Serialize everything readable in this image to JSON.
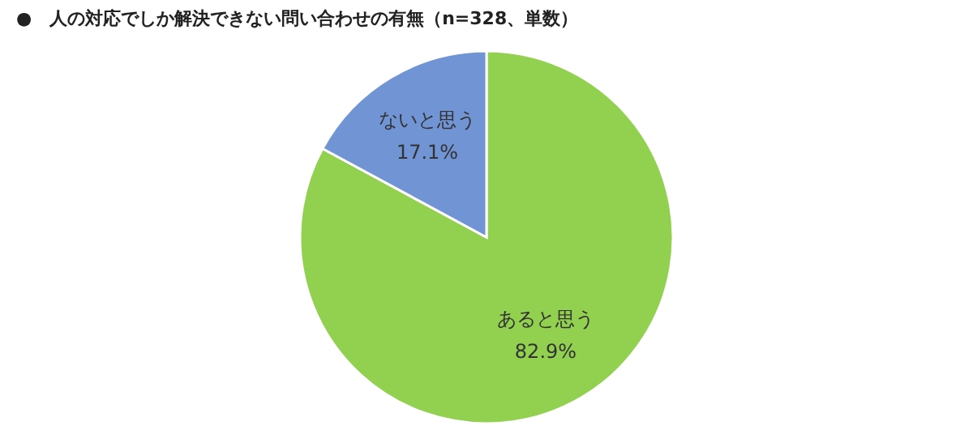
{
  "chart_data": {
    "type": "pie",
    "title": "●　人の対応でしか解決できない問い合わせの有無（n=328、単数）",
    "categories": [
      "あると思う",
      "ないと思う"
    ],
    "values": [
      82.9,
      17.1
    ],
    "colors": [
      "#92d050",
      "#7094d4"
    ],
    "value_labels": [
      "82.9%",
      "17.1%"
    ],
    "legend": false
  }
}
